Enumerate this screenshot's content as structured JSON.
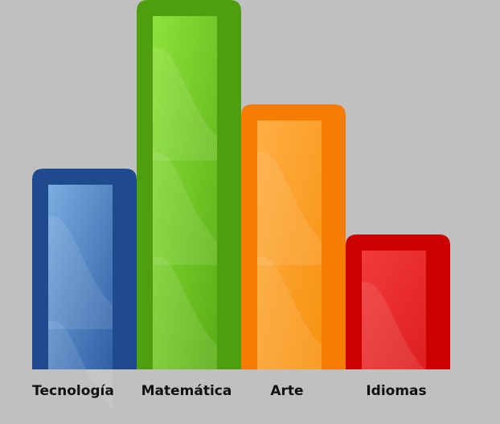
{
  "chart_data": {
    "type": "bar",
    "title": "",
    "xlabel": "",
    "ylabel": "",
    "categories": [
      "Tecnología",
      "Matemática",
      "Arte",
      "Idiomas"
    ],
    "values": [
      250,
      460,
      330,
      168
    ],
    "ylim": [
      0,
      460
    ],
    "grid": false,
    "legend": "none",
    "colors": {
      "outer": [
        "#1f4b8e",
        "#4e9e10",
        "#f57c00",
        "#cc0000"
      ],
      "inner_light": [
        "#7aaee0",
        "#8fe23a",
        "#ffae45",
        "#f23a3a"
      ],
      "inner_dark": [
        "#2f5fa6",
        "#5aae16",
        "#f7920f",
        "#de1f1f"
      ]
    }
  }
}
